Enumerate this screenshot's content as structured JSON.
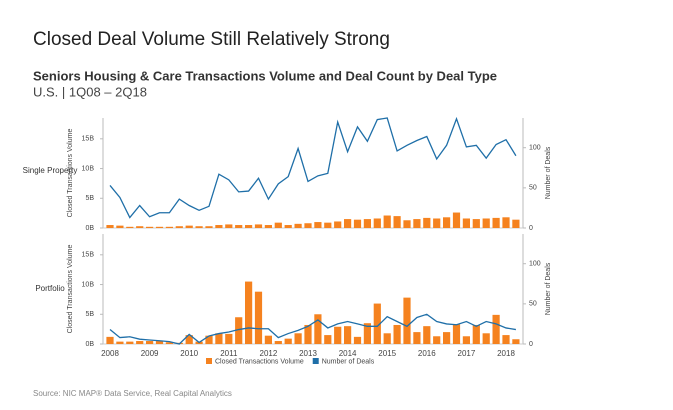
{
  "title": "Closed Deal Volume Still Relatively Strong",
  "subtitle": "Seniors Housing & Care Transactions Volume and Deal Count by Deal Type",
  "caption": "U.S. | 1Q08 – 2Q18",
  "source": "Source:  NIC MAP® Data Service,  Real Capital Analytics",
  "chart_data": [
    {
      "type": "bar",
      "title": "Single Property",
      "ylabel": "Closed Transactions Volume",
      "y2label": "Number of Deals",
      "categories": [
        "2008",
        null,
        null,
        null,
        "2009",
        null,
        null,
        null,
        "2010",
        null,
        null,
        null,
        "2011",
        null,
        null,
        null,
        "2012",
        null,
        null,
        null,
        "2013",
        null,
        null,
        null,
        "2014",
        null,
        null,
        null,
        "2015",
        null,
        null,
        null,
        "2016",
        null,
        null,
        null,
        "2017",
        null,
        null,
        null,
        "2018",
        null
      ],
      "ylim": [
        0,
        18.5
      ],
      "yticks": [
        {
          "value": 0,
          "label": "0B"
        },
        {
          "value": 5,
          "label": "5B"
        },
        {
          "value": 10,
          "label": "10B"
        },
        {
          "value": 15,
          "label": "15B"
        }
      ],
      "y2lim": [
        0,
        137
      ],
      "y2ticks": [
        0,
        50,
        100
      ],
      "series": [
        {
          "name": "Closed Transactions Volume",
          "type": "bar",
          "color": "#f5821f",
          "values": [
            0.5,
            0.4,
            0.2,
            0.3,
            0.2,
            0.2,
            0.2,
            0.3,
            0.4,
            0.3,
            0.3,
            0.5,
            0.6,
            0.5,
            0.5,
            0.6,
            0.5,
            0.9,
            0.5,
            0.7,
            0.8,
            1.0,
            0.9,
            1.1,
            1.5,
            1.4,
            1.5,
            1.6,
            2.1,
            2.0,
            1.3,
            1.5,
            1.7,
            1.6,
            1.8,
            2.6,
            1.6,
            1.5,
            1.6,
            1.7,
            1.8,
            1.4
          ]
        },
        {
          "name": "Number of Deals",
          "type": "line",
          "axis": "y2",
          "color": "#1f6fa8",
          "values": [
            53,
            38,
            13,
            28,
            14,
            19,
            19,
            36,
            28,
            22,
            27,
            67,
            60,
            45,
            46,
            62,
            36,
            55,
            64,
            99,
            58,
            65,
            68,
            132,
            95,
            126,
            108,
            135,
            137,
            96,
            103,
            109,
            114,
            86,
            103,
            136,
            101,
            103,
            87,
            104,
            110,
            90
          ]
        }
      ]
    },
    {
      "type": "bar",
      "title": "Portfolio",
      "ylabel": "Closed Transactions Volume",
      "y2label": "Number of Deals",
      "categories": [
        "2008",
        null,
        null,
        null,
        "2009",
        null,
        null,
        null,
        "2010",
        null,
        null,
        null,
        "2011",
        null,
        null,
        null,
        "2012",
        null,
        null,
        null,
        "2013",
        null,
        null,
        null,
        "2014",
        null,
        null,
        null,
        "2015",
        null,
        null,
        null,
        "2016",
        null,
        null,
        null,
        "2017",
        null,
        null,
        null,
        "2018",
        null
      ],
      "ylim": [
        0,
        18.5
      ],
      "yticks": [
        {
          "value": 0,
          "label": "0B"
        },
        {
          "value": 5,
          "label": "5B"
        },
        {
          "value": 10,
          "label": "10B"
        },
        {
          "value": 15,
          "label": "15B"
        }
      ],
      "y2lim": [
        0,
        137
      ],
      "y2ticks": [
        0,
        50,
        100
      ],
      "series": [
        {
          "type": "bar",
          "color": "#f5821f",
          "values": [
            1.2,
            0.4,
            0.4,
            0.5,
            0.5,
            0.5,
            0.3,
            0.2,
            1.5,
            0.4,
            1.4,
            1.8,
            1.7,
            4.5,
            10.5,
            8.8,
            1.4,
            0.5,
            0.9,
            1.8,
            3.2,
            5.0,
            1.5,
            2.9,
            3.0,
            1.2,
            3.5,
            6.8,
            1.8,
            3.2,
            7.8,
            2.0,
            3.0,
            1.3,
            2.0,
            3.3,
            1.3,
            3.2,
            1.8,
            4.9,
            1.5,
            0.8
          ]
        },
        {
          "type": "line",
          "axis": "y2",
          "color": "#1f6fa8",
          "values": [
            18,
            8,
            9,
            6,
            5,
            4,
            3,
            0,
            12,
            2,
            10,
            13,
            15,
            18,
            20,
            19,
            19,
            8,
            13,
            17,
            22,
            30,
            20,
            25,
            28,
            25,
            22,
            22,
            34,
            28,
            22,
            33,
            37,
            28,
            25,
            24,
            28,
            22,
            28,
            25,
            20,
            18
          ]
        }
      ]
    }
  ]
}
